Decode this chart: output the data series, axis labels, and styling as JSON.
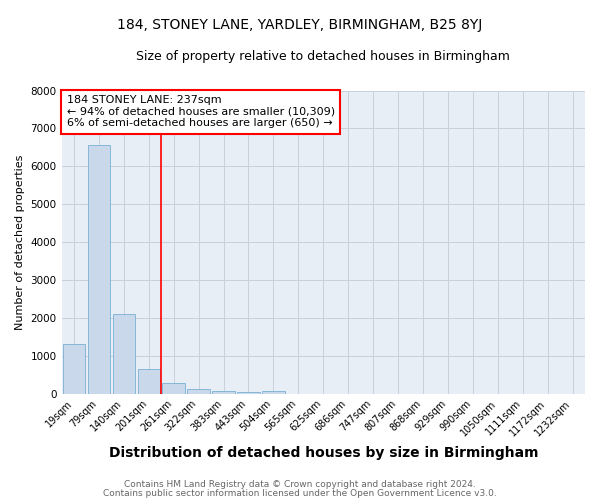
{
  "title": "184, STONEY LANE, YARDLEY, BIRMINGHAM, B25 8YJ",
  "subtitle": "Size of property relative to detached houses in Birmingham",
  "xlabel": "Distribution of detached houses by size in Birmingham",
  "ylabel": "Number of detached properties",
  "categories": [
    "19sqm",
    "79sqm",
    "140sqm",
    "201sqm",
    "261sqm",
    "322sqm",
    "383sqm",
    "443sqm",
    "504sqm",
    "565sqm",
    "625sqm",
    "686sqm",
    "747sqm",
    "807sqm",
    "868sqm",
    "929sqm",
    "990sqm",
    "1050sqm",
    "1111sqm",
    "1172sqm",
    "1232sqm"
  ],
  "values": [
    1300,
    6550,
    2100,
    650,
    290,
    130,
    80,
    40,
    70,
    0,
    0,
    0,
    0,
    0,
    0,
    0,
    0,
    0,
    0,
    0,
    0
  ],
  "bar_color": "#c9d9eb",
  "bar_edge_color": "#7aafd4",
  "bar_edge_width": 0.6,
  "red_line_x": 3.5,
  "annotation_text_line1": "184 STONEY LANE: 237sqm",
  "annotation_text_line2": "← 94% of detached houses are smaller (10,309)",
  "annotation_text_line3": "6% of semi-detached houses are larger (650) →",
  "ylim": [
    0,
    8000
  ],
  "yticks": [
    0,
    1000,
    2000,
    3000,
    4000,
    5000,
    6000,
    7000,
    8000
  ],
  "footnote_line1": "Contains HM Land Registry data © Crown copyright and database right 2024.",
  "footnote_line2": "Contains public sector information licensed under the Open Government Licence v3.0.",
  "bg_color": "#ffffff",
  "plot_bg_color": "#e8eef5",
  "grid_color": "#c8d0dc",
  "title_fontsize": 10,
  "subtitle_fontsize": 9,
  "xlabel_fontsize": 10,
  "ylabel_fontsize": 8,
  "tick_fontsize": 7,
  "annot_fontsize": 8,
  "footnote_fontsize": 6.5
}
